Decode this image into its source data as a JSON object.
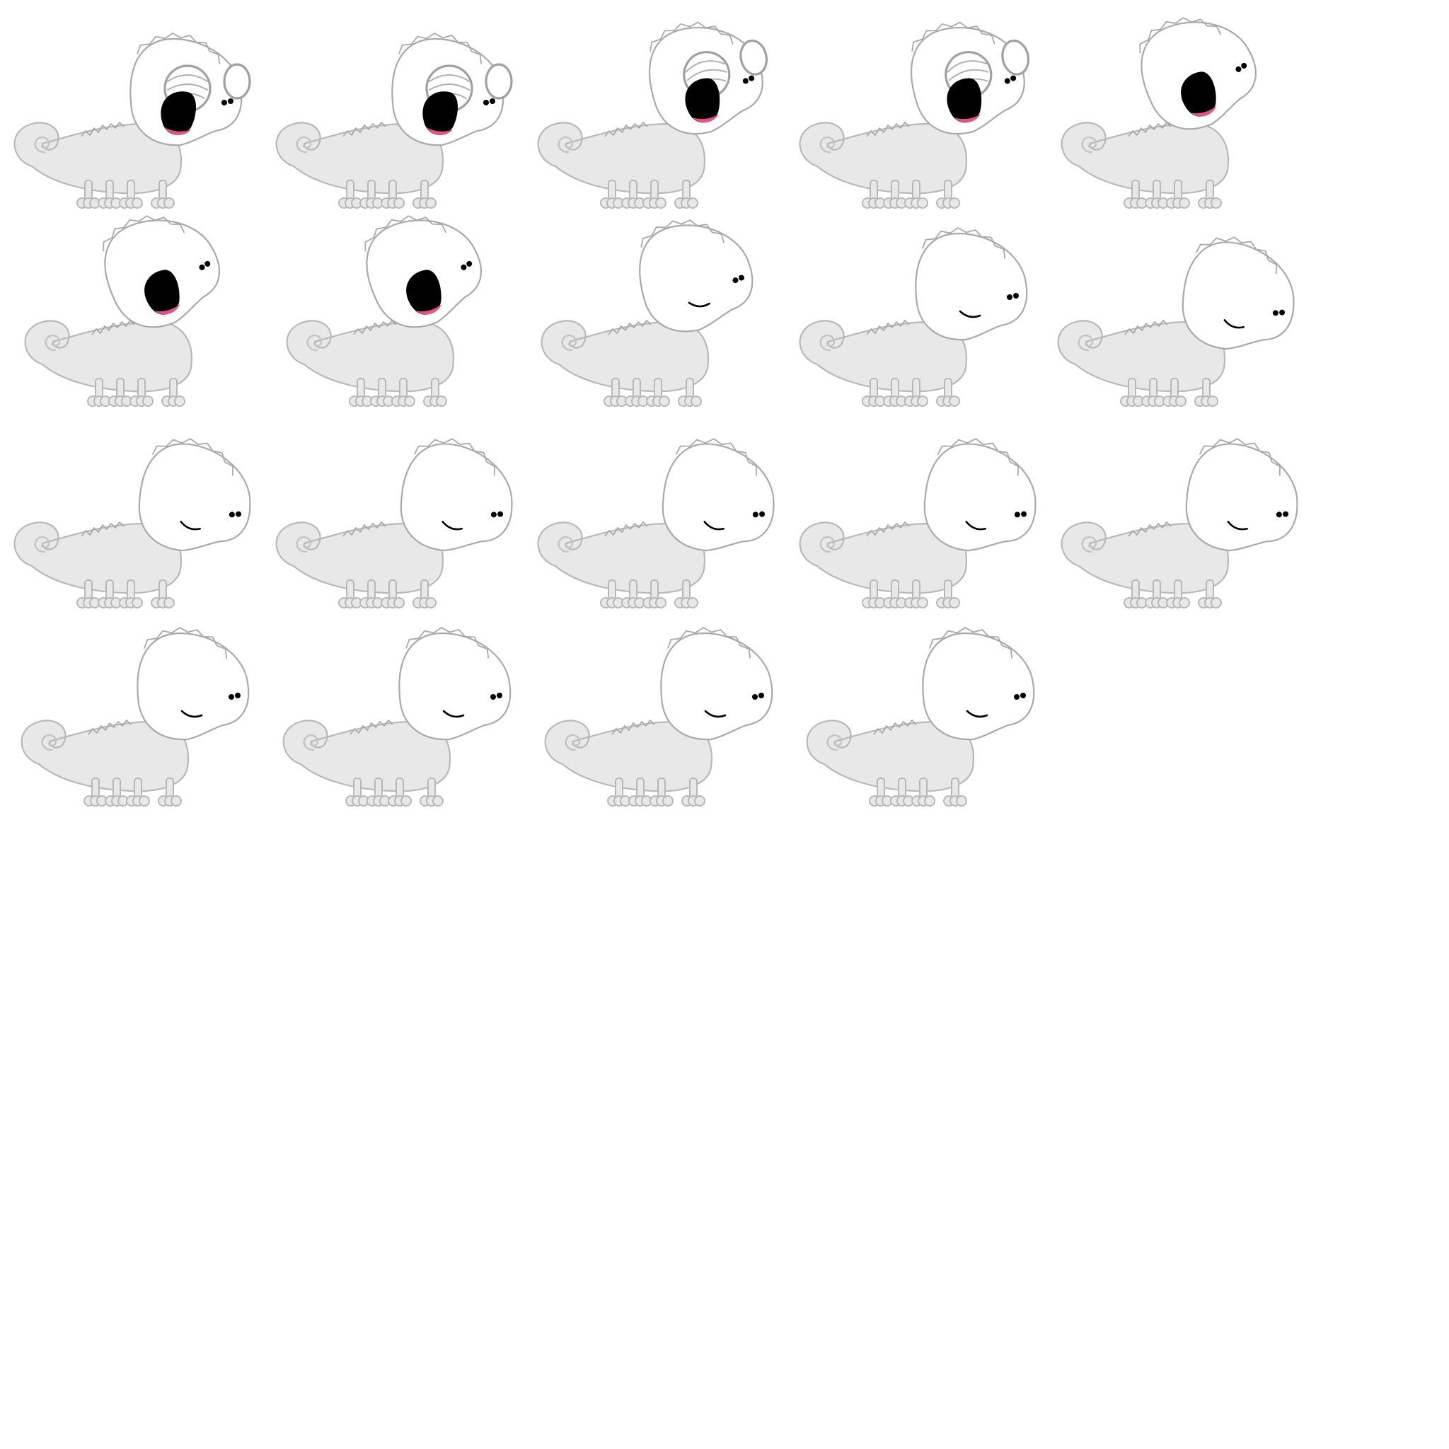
{
  "sprite_sheet": {
    "background": "#ffffff",
    "colors": {
      "body": "#e8e8e8",
      "outline": "#b0b0b0",
      "head": "#ffffff",
      "mouth": "#000000",
      "tongue": "#e4528b"
    },
    "frames": [
      {
        "id": 1,
        "pose": "eyes-open-mouth-open",
        "facing": "right"
      },
      {
        "id": 2,
        "pose": "eyes-open-mouth-open",
        "facing": "right"
      },
      {
        "id": 3,
        "pose": "eyes-open-mouth-open-head-up",
        "facing": "right"
      },
      {
        "id": 4,
        "pose": "eyes-open-mouth-open-head-up",
        "facing": "right"
      },
      {
        "id": 5,
        "pose": "mouth-open-head-up",
        "facing": "right"
      },
      {
        "id": 6,
        "pose": "mouth-open-head-up",
        "facing": "right"
      },
      {
        "id": 7,
        "pose": "mouth-open-head-up",
        "facing": "right"
      },
      {
        "id": 8,
        "pose": "smile-head-up",
        "facing": "right"
      },
      {
        "id": 9,
        "pose": "smile",
        "facing": "right"
      },
      {
        "id": 10,
        "pose": "smile-head-down",
        "facing": "right"
      },
      {
        "id": 11,
        "pose": "smile-head-down",
        "facing": "right"
      },
      {
        "id": 12,
        "pose": "smile-head-down",
        "facing": "right"
      },
      {
        "id": 13,
        "pose": "smile-head-down",
        "facing": "right"
      },
      {
        "id": 14,
        "pose": "smile-head-down",
        "facing": "right"
      },
      {
        "id": 15,
        "pose": "smile-head-down",
        "facing": "right"
      },
      {
        "id": 16,
        "pose": "smile",
        "facing": "right"
      },
      {
        "id": 17,
        "pose": "smile",
        "facing": "right"
      },
      {
        "id": 18,
        "pose": "smile",
        "facing": "right"
      },
      {
        "id": 19,
        "pose": "smile",
        "facing": "right"
      }
    ]
  }
}
